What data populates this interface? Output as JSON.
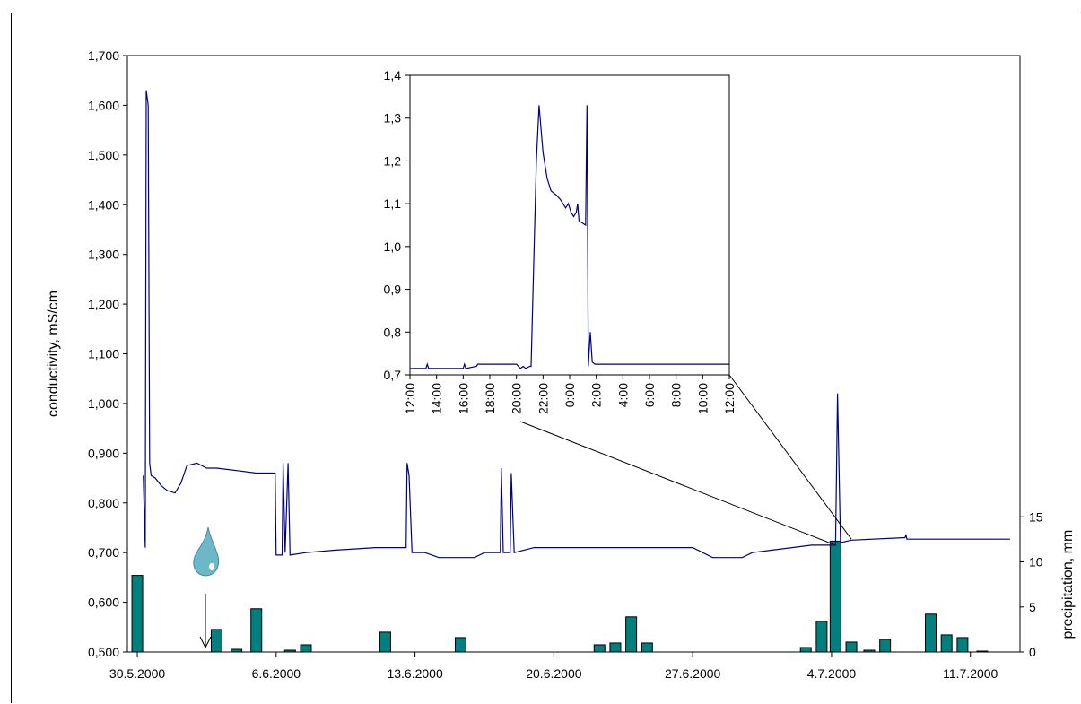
{
  "chart_data": [
    {
      "type": "line",
      "ylabel": "conductivity, mS/cm",
      "ylim": [
        0.5,
        1.7
      ],
      "y_ticks": [
        "0,500",
        "0,600",
        "0,700",
        "0,800",
        "0,900",
        "1,000",
        "1,100",
        "1,200",
        "1,300",
        "1,400",
        "1,500",
        "1,600",
        "1,700"
      ],
      "x_tick_labels": [
        "30.5.2000",
        "6.6.2000",
        "13.6.2000",
        "20.6.2000",
        "27.6.2000",
        "4.7.2000",
        "11.7.2000"
      ],
      "x_tick_days": [
        0,
        7,
        14,
        21,
        28,
        35,
        42
      ],
      "xlim_days": [
        -0.5,
        44.5
      ],
      "series": [
        {
          "color": "#000080",
          "points": [
            [
              0.3,
              0.855
            ],
            [
              0.4,
              0.71
            ],
            [
              0.45,
              1.63
            ],
            [
              0.55,
              1.6
            ],
            [
              0.62,
              0.88
            ],
            [
              0.7,
              0.855
            ],
            [
              0.9,
              0.85
            ],
            [
              1.2,
              0.835
            ],
            [
              1.5,
              0.825
            ],
            [
              1.9,
              0.82
            ],
            [
              2.2,
              0.84
            ],
            [
              2.5,
              0.875
            ],
            [
              3,
              0.88
            ],
            [
              3.5,
              0.87
            ],
            [
              4,
              0.87
            ],
            [
              5,
              0.865
            ],
            [
              6,
              0.86
            ],
            [
              6.95,
              0.86
            ],
            [
              7.0,
              0.695
            ],
            [
              7.3,
              0.695
            ],
            [
              7.35,
              0.88
            ],
            [
              7.45,
              0.7
            ],
            [
              7.6,
              0.88
            ],
            [
              7.7,
              0.695
            ],
            [
              8.5,
              0.7
            ],
            [
              10,
              0.705
            ],
            [
              12,
              0.71
            ],
            [
              13.55,
              0.71
            ],
            [
              13.6,
              0.88
            ],
            [
              13.7,
              0.855
            ],
            [
              13.85,
              0.7
            ],
            [
              14.5,
              0.7
            ],
            [
              15.2,
              0.69
            ],
            [
              17,
              0.69
            ],
            [
              17.5,
              0.7
            ],
            [
              18.3,
              0.7
            ],
            [
              18.35,
              0.87
            ],
            [
              18.45,
              0.7
            ],
            [
              18.8,
              0.7
            ],
            [
              18.85,
              0.86
            ],
            [
              19.0,
              0.7
            ],
            [
              20,
              0.71
            ],
            [
              25,
              0.71
            ],
            [
              28,
              0.71
            ],
            [
              29,
              0.69
            ],
            [
              30.5,
              0.69
            ],
            [
              31,
              0.7
            ],
            [
              32,
              0.705
            ],
            [
              34,
              0.715
            ],
            [
              35.2,
              0.715
            ],
            [
              35.3,
              1.02
            ],
            [
              35.45,
              0.72
            ],
            [
              36,
              0.725
            ],
            [
              38.7,
              0.73
            ],
            [
              38.75,
              0.735
            ],
            [
              38.8,
              0.727
            ],
            [
              44,
              0.727
            ]
          ]
        }
      ]
    },
    {
      "type": "bar",
      "ylabel": "precipitation, mm",
      "ylim": [
        0,
        15
      ],
      "y2_range": [
        0.5,
        0.772
      ],
      "y_ticks": [
        "0",
        "5",
        "10",
        "15"
      ],
      "bar_color": "#007f7f",
      "bars": [
        {
          "day": 0,
          "value": 8.5
        },
        {
          "day": 4,
          "value": 2.5
        },
        {
          "day": 5,
          "value": 0.3
        },
        {
          "day": 6,
          "value": 4.8
        },
        {
          "day": 7.7,
          "value": 0.2
        },
        {
          "day": 8.5,
          "value": 0.8
        },
        {
          "day": 12.5,
          "value": 2.2
        },
        {
          "day": 16.3,
          "value": 1.6
        },
        {
          "day": 23.3,
          "value": 0.8
        },
        {
          "day": 24.1,
          "value": 1.0
        },
        {
          "day": 24.9,
          "value": 3.9
        },
        {
          "day": 25.7,
          "value": 1.0
        },
        {
          "day": 33.7,
          "value": 0.5
        },
        {
          "day": 34.5,
          "value": 3.4
        },
        {
          "day": 35.2,
          "value": 12.3
        },
        {
          "day": 36,
          "value": 1.1
        },
        {
          "day": 36.9,
          "value": 0.2
        },
        {
          "day": 37.7,
          "value": 1.4
        },
        {
          "day": 40,
          "value": 4.2
        },
        {
          "day": 40.8,
          "value": 1.9
        },
        {
          "day": 41.6,
          "value": 1.6
        },
        {
          "day": 42.6,
          "value": 0.1
        }
      ]
    },
    {
      "type": "line",
      "ylim": [
        0.7,
        1.4
      ],
      "y_ticks": [
        "0,7",
        "0,8",
        "0,9",
        "1,0",
        "1,1",
        "1,2",
        "1,3",
        "1,4"
      ],
      "x_tick_labels": [
        "12:00",
        "14:00",
        "16:00",
        "18:00",
        "20:00",
        "22:00",
        "0:00",
        "2:00",
        "4:00",
        "6:00",
        "8:00",
        "10:00",
        "12:00"
      ],
      "xlim_hours": [
        12,
        36
      ],
      "series": [
        {
          "color": "#000080",
          "points": [
            [
              12,
              0.715
            ],
            [
              13.2,
              0.715
            ],
            [
              13.3,
              0.725
            ],
            [
              13.4,
              0.715
            ],
            [
              16,
              0.715
            ],
            [
              16.1,
              0.725
            ],
            [
              16.2,
              0.715
            ],
            [
              17,
              0.72
            ],
            [
              17.1,
              0.725
            ],
            [
              20,
              0.725
            ],
            [
              20.3,
              0.715
            ],
            [
              20.5,
              0.72
            ],
            [
              20.7,
              0.715
            ],
            [
              21,
              0.72
            ],
            [
              21.1,
              0.72
            ],
            [
              21.5,
              1.2
            ],
            [
              21.7,
              1.33
            ],
            [
              22,
              1.22
            ],
            [
              22.3,
              1.16
            ],
            [
              22.6,
              1.13
            ],
            [
              23,
              1.12
            ],
            [
              23.3,
              1.11
            ],
            [
              23.5,
              1.1
            ],
            [
              23.7,
              1.09
            ],
            [
              23.9,
              1.1
            ],
            [
              24.1,
              1.08
            ],
            [
              24.3,
              1.07
            ],
            [
              24.5,
              1.08
            ],
            [
              24.6,
              1.1
            ],
            [
              24.7,
              1.06
            ],
            [
              25.2,
              1.05
            ],
            [
              25.3,
              1.33
            ],
            [
              25.4,
              0.72
            ],
            [
              25.55,
              0.8
            ],
            [
              25.7,
              0.73
            ],
            [
              25.9,
              0.725
            ],
            [
              36,
              0.725
            ]
          ]
        }
      ]
    }
  ],
  "annotations": {
    "raindrop_icon_color": "#6cb8c8"
  }
}
